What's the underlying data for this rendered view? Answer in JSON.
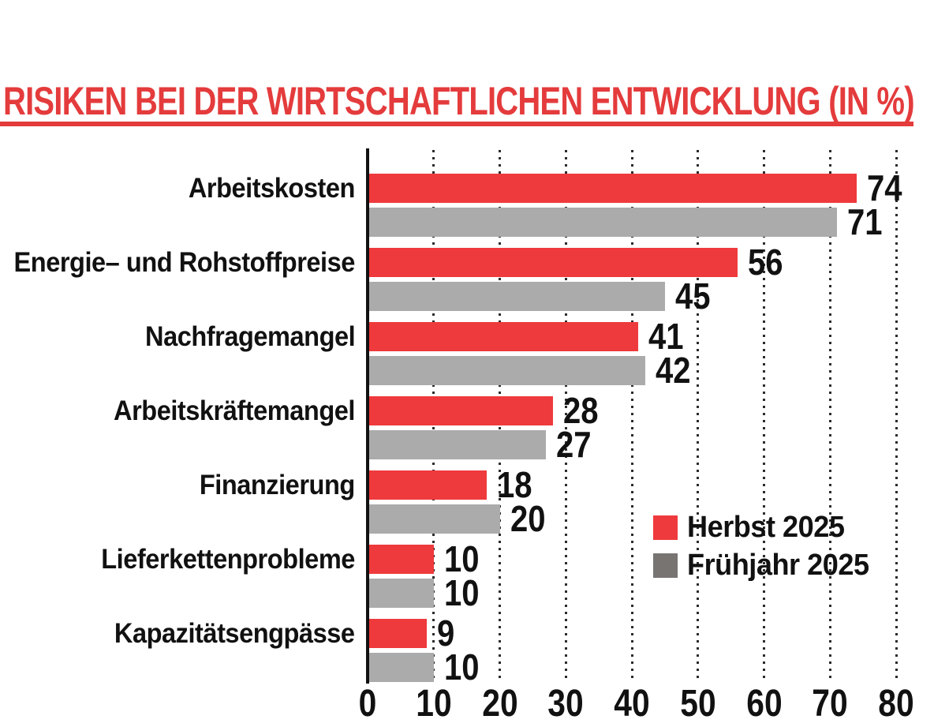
{
  "header": {
    "title": "RISIKEN BEI DER WIRTSCHAFTLICHEN ENTWICKLUNG (IN %)",
    "title_color": "#E43B3C",
    "underline_color": "#E43B3C"
  },
  "legend": {
    "items": [
      {
        "label": "Herbst 2025",
        "color": "#EE3A3C"
      },
      {
        "label": "Frühjahr 2025",
        "color": "#787472"
      }
    ]
  },
  "chart_data": {
    "type": "bar",
    "orientation": "horizontal",
    "title": "RISIKEN BEI DER WIRTSCHAFTLICHEN ENTWICKLUNG (IN %)",
    "categories": [
      "Arbeitskosten",
      "Energie– und Rohstoffpreise",
      "Nachfragemangel",
      "Arbeitskräftemangel",
      "Finanzierung",
      "Lieferkettenprobleme",
      "Kapazitätsengpässe"
    ],
    "series": [
      {
        "name": "Herbst 2025",
        "color": "#EE3A3C",
        "values": [
          74,
          56,
          41,
          28,
          18,
          10,
          9
        ]
      },
      {
        "name": "Frühjahr 2025",
        "color": "#ABABAB",
        "values": [
          71,
          45,
          42,
          27,
          20,
          10,
          10
        ]
      }
    ],
    "xlim": [
      0,
      80
    ],
    "xticks": [
      0,
      10,
      20,
      30,
      40,
      50,
      60,
      70,
      80
    ],
    "xlabel": "",
    "ylabel": "",
    "grid": "vertical-dotted",
    "gridline_color": "#2b2b2b",
    "axis_line_color": "#111111",
    "value_labels": true,
    "legend_position": "inside-right"
  }
}
